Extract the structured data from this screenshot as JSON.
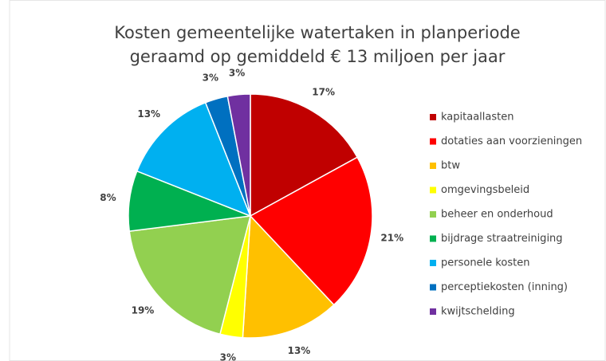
{
  "chart_data": {
    "type": "pie",
    "title": "Kosten gemeentelijke watertaken in planperiode",
    "subtitle": "geraamd op gemiddeld € 13 miljoen per jaar",
    "categories": [
      "kapitaallasten",
      "dotaties aan voorzieningen",
      "btw",
      "omgevingsbeleid",
      "beheer en onderhoud",
      "bijdrage straatreiniging",
      "personele kosten",
      "perceptiekosten (inning)",
      "kwijtschelding"
    ],
    "values": [
      17,
      21,
      13,
      3,
      19,
      8,
      13,
      3,
      3
    ],
    "value_labels": [
      "17%",
      "21%",
      "13%",
      "3%",
      "19%",
      "8%",
      "13%",
      "3%",
      "3%"
    ],
    "colors": [
      "#c00000",
      "#ff0000",
      "#ffc000",
      "#ffff00",
      "#92d050",
      "#00b050",
      "#00b0f0",
      "#0070c0",
      "#7030a0"
    ],
    "legend": "right"
  }
}
